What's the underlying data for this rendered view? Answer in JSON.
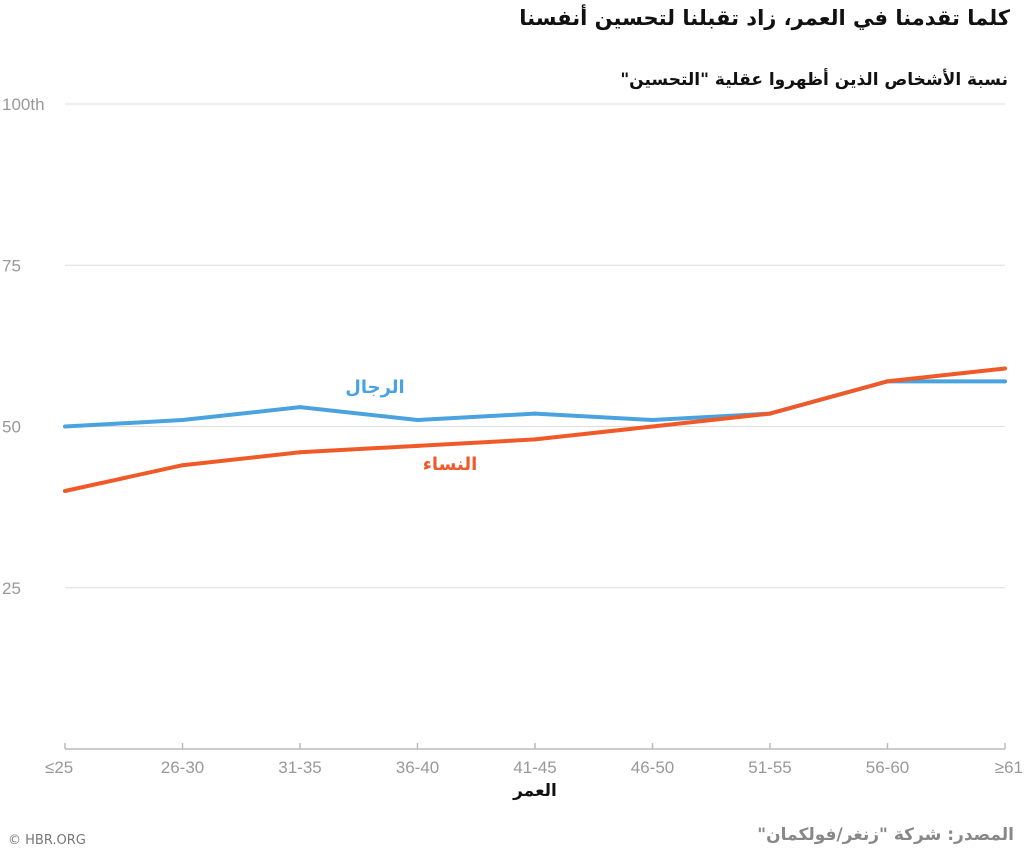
{
  "title": "كلما تقدمنا في العمر، زاد تقبلنا لتحسين أنفسنا",
  "subtitle": "نسبة الأشخاص الذين أظهروا عقلية \"التحسين\"",
  "credit": "© HBR.ORG",
  "source": "المصدر: شركة \"زنغر/فولكمان\"",
  "chart_data": {
    "type": "line",
    "title": "كلما تقدمنا في العمر، زاد تقبلنا لتحسين أنفسنا",
    "xlabel": "العمر",
    "ylabel": "",
    "categories": [
      "≤25",
      "26-30",
      "31-35",
      "36-40",
      "41-45",
      "46-50",
      "51-55",
      "56-60",
      "≥61"
    ],
    "ylim": [
      0,
      100
    ],
    "yticks": [
      25,
      50,
      75,
      100
    ],
    "ytick_labels": [
      "25",
      "50",
      "75",
      "100th"
    ],
    "grid": true,
    "legend": "inline labels",
    "series": [
      {
        "name": "الرجال",
        "color": "#4aa3df",
        "values": [
          50,
          51,
          53,
          51,
          52,
          51,
          52,
          57,
          57
        ]
      },
      {
        "name": "النساء",
        "color": "#f05a28",
        "values": [
          40,
          44,
          46,
          47,
          48,
          50,
          52,
          57,
          59
        ]
      }
    ]
  }
}
